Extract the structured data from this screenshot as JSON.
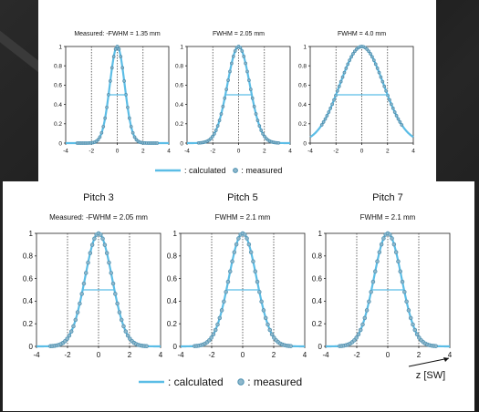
{
  "colors": {
    "calculated": "#5bbde6",
    "measured": "#4a8fb0",
    "axis": "#222222",
    "grid": "#444444"
  },
  "top_legend": {
    "calculated": ": calculated",
    "measured": ": measured"
  },
  "bottom_legend": {
    "calculated": ": calculated",
    "measured": ": measured"
  },
  "xaxis_label": "z [SW]",
  "chart_data": [
    {
      "type": "line",
      "panel": "top",
      "subtitle": "Measured: -FWHM = 1.35 mm",
      "xlim": [
        -4,
        4
      ],
      "ylim": [
        0,
        1
      ],
      "xticks": [
        -4,
        -2,
        0,
        2,
        4
      ],
      "yticks": [
        0,
        0.2,
        0.4,
        0.6,
        0.8,
        1
      ],
      "fwhm_sw": 1.35,
      "series": [
        {
          "name": "calculated"
        },
        {
          "name": "measured"
        }
      ]
    },
    {
      "type": "line",
      "panel": "top",
      "subtitle": "FWHM = 2.05 mm",
      "xlim": [
        -4,
        4
      ],
      "ylim": [
        0,
        1
      ],
      "xticks": [
        -4,
        -2,
        0,
        2,
        4
      ],
      "yticks": [
        0,
        0.2,
        0.4,
        0.6,
        0.8,
        1
      ],
      "fwhm_sw": 2.05,
      "series": [
        {
          "name": "calculated"
        },
        {
          "name": "measured"
        }
      ]
    },
    {
      "type": "line",
      "panel": "top",
      "subtitle": "FWHM = 4.0 mm",
      "xlim": [
        -4,
        4
      ],
      "ylim": [
        0,
        1
      ],
      "xticks": [
        -4,
        -2,
        0,
        2,
        4
      ],
      "yticks": [
        0,
        0.2,
        0.4,
        0.6,
        0.8,
        1
      ],
      "fwhm_sw": 4.0,
      "series": [
        {
          "name": "calculated"
        },
        {
          "name": "measured"
        }
      ]
    },
    {
      "type": "line",
      "panel": "bottom",
      "title": "Pitch 3",
      "subtitle": "Measured: -FWHM = 2.05 mm",
      "xlim": [
        -4,
        4
      ],
      "ylim": [
        0,
        1
      ],
      "xticks": [
        -4,
        -2,
        0,
        2,
        4
      ],
      "yticks": [
        0,
        0.2,
        0.4,
        0.6,
        0.8,
        1
      ],
      "fwhm_sw": 2.05,
      "series": [
        {
          "name": "calculated"
        },
        {
          "name": "measured"
        }
      ]
    },
    {
      "type": "line",
      "panel": "bottom",
      "title": "Pitch 5",
      "subtitle": "FWHM = 2.1 mm",
      "xlim": [
        -4,
        4
      ],
      "ylim": [
        0,
        1
      ],
      "xticks": [
        -4,
        -2,
        0,
        2,
        4
      ],
      "yticks": [
        0,
        0.2,
        0.4,
        0.6,
        0.8,
        1
      ],
      "fwhm_sw": 2.1,
      "series": [
        {
          "name": "calculated"
        },
        {
          "name": "measured"
        }
      ]
    },
    {
      "type": "line",
      "panel": "bottom",
      "title": "Pitch 7",
      "subtitle": "FWHM = 2.1 mm",
      "xlim": [
        -4,
        4
      ],
      "ylim": [
        0,
        1
      ],
      "xticks": [
        -4,
        -2,
        0,
        2,
        4
      ],
      "yticks": [
        0,
        0.2,
        0.4,
        0.6,
        0.8,
        1
      ],
      "fwhm_sw": 2.1,
      "series": [
        {
          "name": "calculated"
        },
        {
          "name": "measured"
        }
      ]
    }
  ]
}
